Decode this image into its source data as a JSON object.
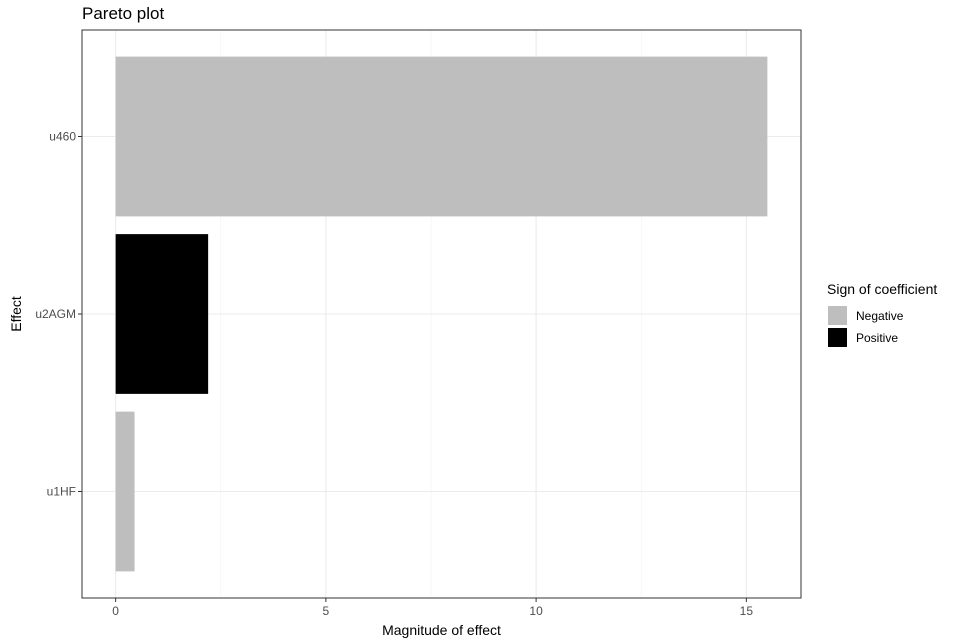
{
  "chart_data": {
    "type": "bar",
    "orientation": "horizontal",
    "title": "Pareto plot",
    "xlabel": "Magnitude of effect",
    "ylabel": "Effect",
    "categories": [
      "u1HF",
      "u2AGM",
      "u460"
    ],
    "values": [
      0.45,
      2.2,
      15.5
    ],
    "signs": [
      "Negative",
      "Positive",
      "Negative"
    ],
    "xlim": [
      -0.8,
      16.3
    ],
    "xticks": [
      0,
      5,
      10,
      15
    ],
    "grid": true,
    "legend": {
      "title": "Sign of coefficient",
      "placement": "right",
      "entries": [
        {
          "label": "Negative",
          "color": "#bebebe"
        },
        {
          "label": "Positive",
          "color": "#000000"
        }
      ]
    }
  }
}
